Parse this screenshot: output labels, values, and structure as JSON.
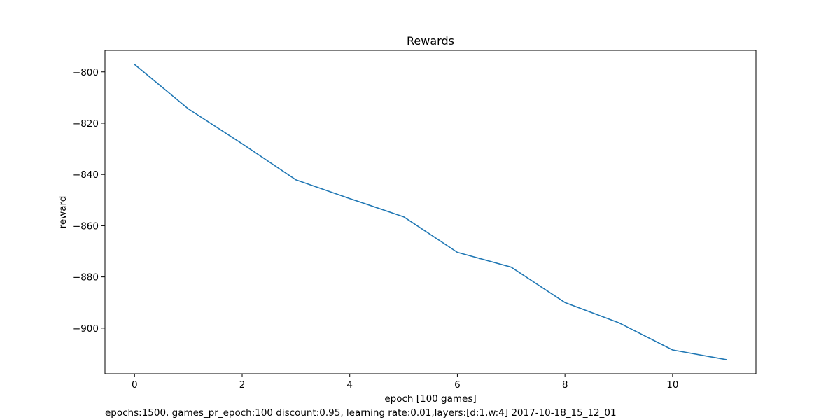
{
  "chart_data": {
    "type": "line",
    "title": "Rewards",
    "xlabel": "epoch [100 games]",
    "ylabel": "reward",
    "caption": "epochs:1500, games_pr_epoch:100 discount:0.95, learning rate:0.01,layers:[d:1,w:4] 2017-10-18_15_12_01",
    "x": [
      0,
      1,
      2,
      3,
      4,
      5,
      6,
      7,
      8,
      9,
      10,
      11
    ],
    "series": [
      {
        "values": [
          -797.1,
          -814.4,
          -828.0,
          -842.1,
          -849.4,
          -856.5,
          -870.4,
          -876.2,
          -890.0,
          -897.9,
          -908.5,
          -912.3
        ],
        "color": "#1f77b4"
      }
    ],
    "xlim": [
      -0.55,
      11.55
    ],
    "ylim": [
      -917.8,
      -791.6
    ],
    "xticks": [
      0,
      2,
      4,
      6,
      8,
      10
    ],
    "yticks": [
      -800,
      -820,
      -840,
      -860,
      -880,
      -900
    ],
    "xtick_labels": [
      "0",
      "2",
      "4",
      "6",
      "8",
      "10"
    ],
    "ytick_labels": [
      "−800",
      "−820",
      "−840",
      "−860",
      "−880",
      "−900"
    ],
    "grid": false,
    "legend": false
  }
}
